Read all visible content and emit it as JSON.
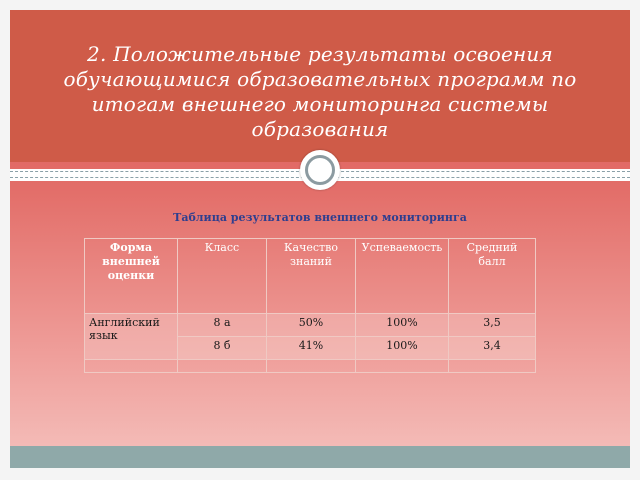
{
  "slide": {
    "title": "2. Положительные результаты освоения обучающимися образовательных программ по итогам внешнего мониторинга системы образования",
    "subtitle": "Таблица результатов внешнего мониторинга"
  },
  "table": {
    "headers": [
      "Форма внешней оценки",
      "Класс",
      "Качество знаний",
      "Успеваемость",
      "Средний балл"
    ],
    "rows": [
      {
        "form": "Английский язык",
        "class": "8 а",
        "quality": "50%",
        "progress": "100%",
        "avg": "3,5"
      },
      {
        "form": "",
        "class": "8 б",
        "quality": "41%",
        "progress": "100%",
        "avg": "3,4"
      }
    ]
  },
  "colors": {
    "header_band": "#cf5b48",
    "gradient_top": "#d9504f",
    "gradient_bottom": "#f5c1bd",
    "subtitle_text": "#2f3e8f",
    "footer_band": "#8fa9a9"
  }
}
